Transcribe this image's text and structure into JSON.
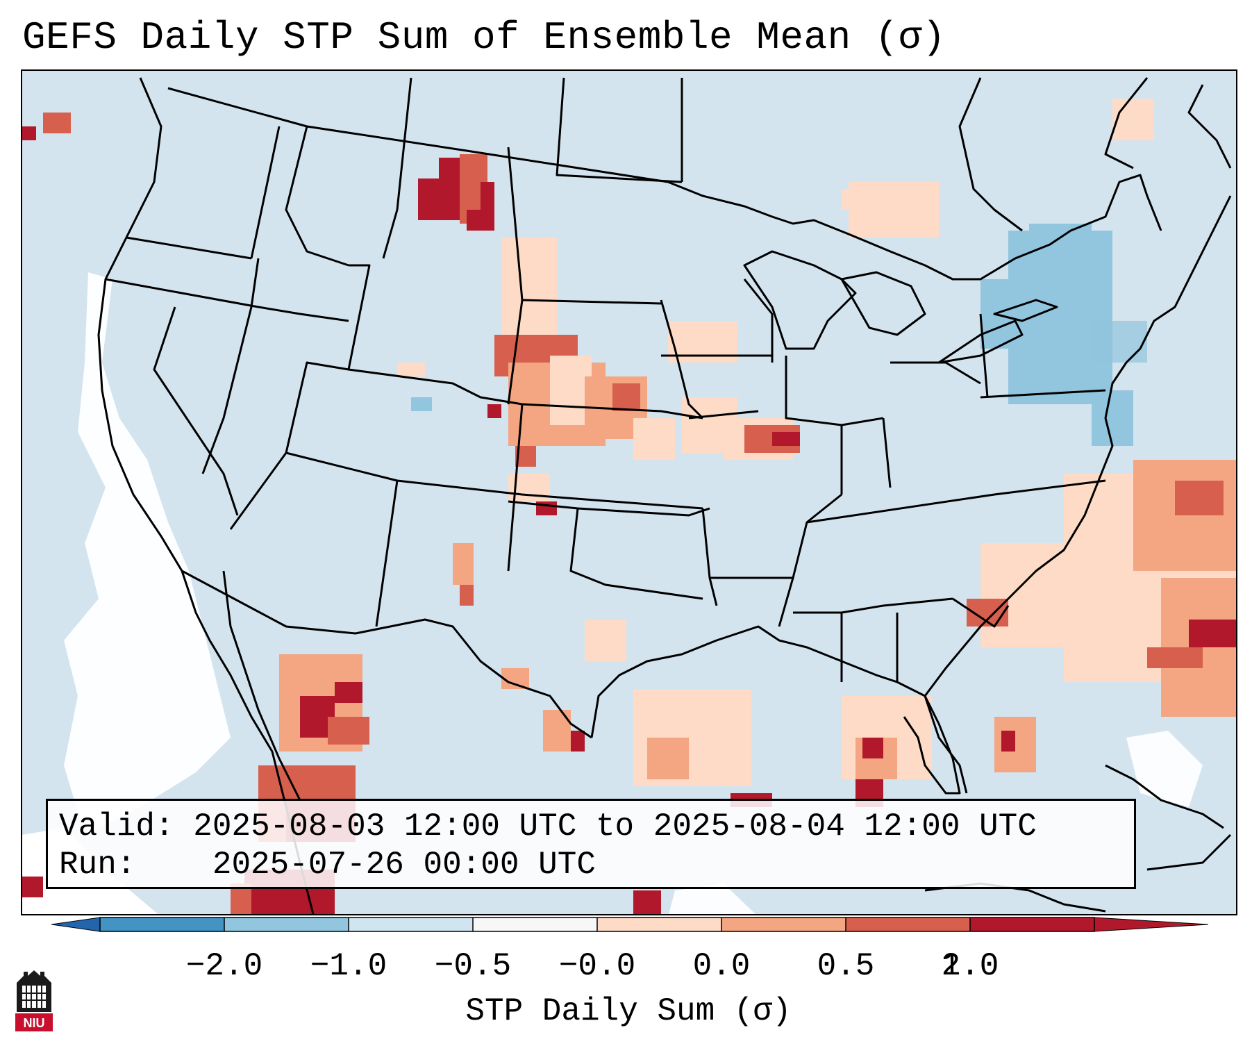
{
  "title": "GEFS Daily STP Sum of Ensemble Mean (σ)",
  "info": {
    "valid_label": "Valid:",
    "valid_value": "2025-08-03 12:00 UTC to 2025-08-04 12:00 UTC",
    "run_label": "Run:",
    "run_value": "2025-07-26 00:00 UTC"
  },
  "colorbar": {
    "label": "STP Daily Sum (σ)",
    "ticks": [
      "−2.0",
      "−1.0",
      "−0.5",
      "−0.0",
      "0.0",
      "0.5",
      "1.0",
      "2.0"
    ],
    "colors": [
      "#4393c3",
      "#92c5de",
      "#d1e5f0",
      "#f7f7f7",
      "#fddbc7",
      "#f4a582",
      "#d6604d",
      "#b2182b"
    ],
    "underflow_color": "#2166ac",
    "overflow_color": "#b2182b"
  },
  "map": {
    "background_color": "#d3e4ef",
    "ocean_white_color": "#ffffff",
    "borders_color": "#000000"
  },
  "logo": {
    "text": "NIU",
    "icon": "university-logo-icon"
  }
}
